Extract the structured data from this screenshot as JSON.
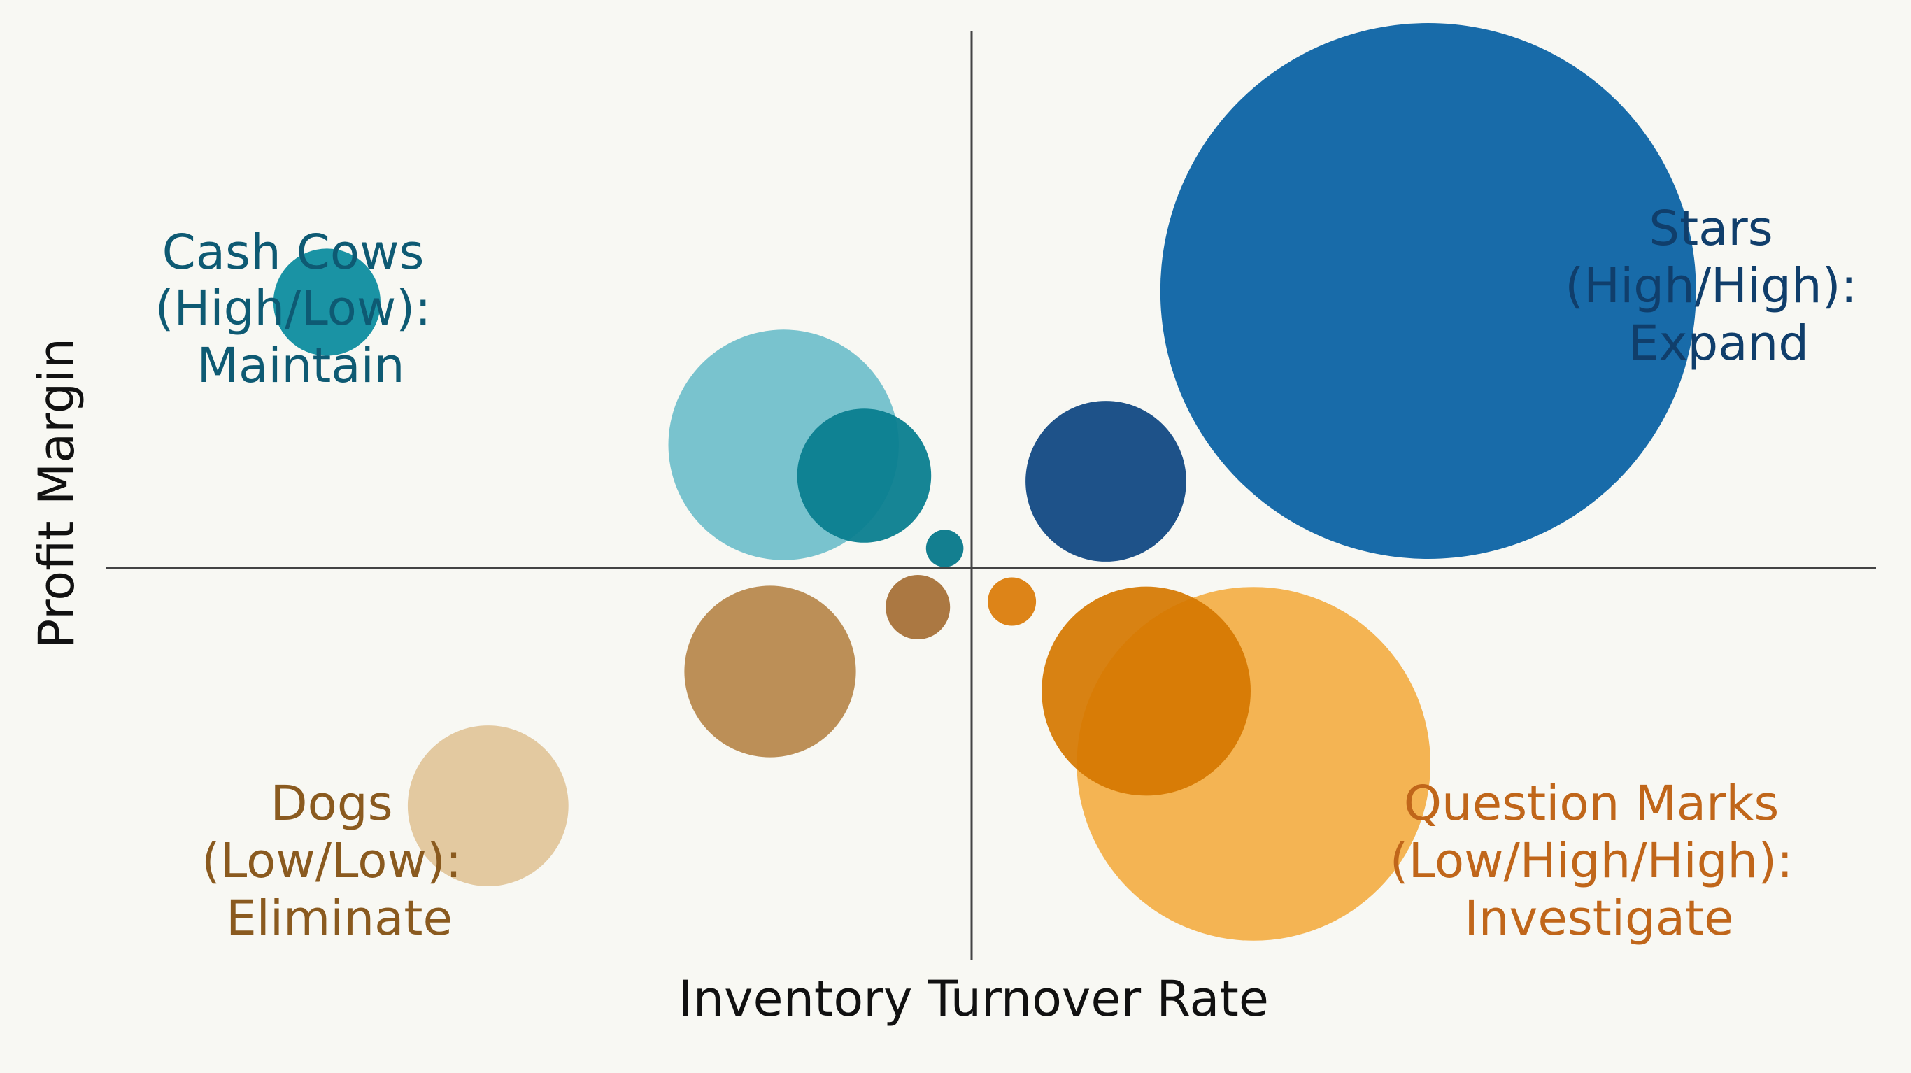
{
  "chart_data": {
    "type": "scatter",
    "variant": "bubble-quadrant",
    "title": "",
    "xlabel": "Inventory Turnover Rate",
    "ylabel": "Profit Margin",
    "xlim": [
      -1,
      1
    ],
    "ylim": [
      -1,
      1
    ],
    "grid": false,
    "legend": "none",
    "quadrants": [
      {
        "name": "cash-cows",
        "lines": [
          "Cash Cows",
          "(High/Low):",
          "Maintain"
        ],
        "color": "#0e5a73"
      },
      {
        "name": "stars",
        "lines": [
          "Stars",
          "(High/High):",
          "Expand"
        ],
        "color": "#103e6b"
      },
      {
        "name": "dogs",
        "lines": [
          "Dogs",
          "(Low/Low):",
          "Eliminate"
        ],
        "color": "#8a5a1f"
      },
      {
        "name": "question-marks",
        "lines": [
          "Question Marks",
          "(Low/High/High):",
          "Investigate"
        ],
        "color": "#c0661a"
      }
    ],
    "series": [
      {
        "quadrant": "stars",
        "points": [
          {
            "x": 0.34,
            "y": 0.99,
            "size": 1.0,
            "color": "#0f65a6",
            "opacity": 0.96
          },
          {
            "x": 0.1,
            "y": 0.31,
            "size": 0.3,
            "color": "#053f7d",
            "opacity": 0.9
          }
        ]
      },
      {
        "quadrant": "cash-cows",
        "points": [
          {
            "x": -0.48,
            "y": 0.95,
            "size": 0.2,
            "color": "#1a93a4",
            "opacity": 1.0
          },
          {
            "x": -0.14,
            "y": 0.44,
            "size": 0.43,
            "color": "#72c0cb",
            "opacity": 0.95
          },
          {
            "x": -0.08,
            "y": 0.33,
            "size": 0.25,
            "color": "#0a7e8f",
            "opacity": 0.95
          },
          {
            "x": -0.02,
            "y": 0.07,
            "size": 0.07,
            "color": "#137f90",
            "opacity": 1.0
          }
        ]
      },
      {
        "quadrant": "dogs",
        "points": [
          {
            "x": -0.36,
            "y": -0.85,
            "size": 0.3,
            "color": "#e3c9a0",
            "opacity": 1.0
          },
          {
            "x": -0.15,
            "y": -0.37,
            "size": 0.32,
            "color": "#b98a50",
            "opacity": 0.96
          },
          {
            "x": -0.04,
            "y": -0.14,
            "size": 0.12,
            "color": "#a8733a",
            "opacity": 0.96
          }
        ]
      },
      {
        "quadrant": "question-marks",
        "points": [
          {
            "x": 0.21,
            "y": -0.7,
            "size": 0.66,
            "color": "#f3b04a",
            "opacity": 0.95
          },
          {
            "x": 0.13,
            "y": -0.44,
            "size": 0.39,
            "color": "#d57700",
            "opacity": 0.92
          },
          {
            "x": 0.03,
            "y": -0.12,
            "size": 0.09,
            "color": "#db7d0c",
            "opacity": 0.95
          }
        ]
      }
    ]
  }
}
